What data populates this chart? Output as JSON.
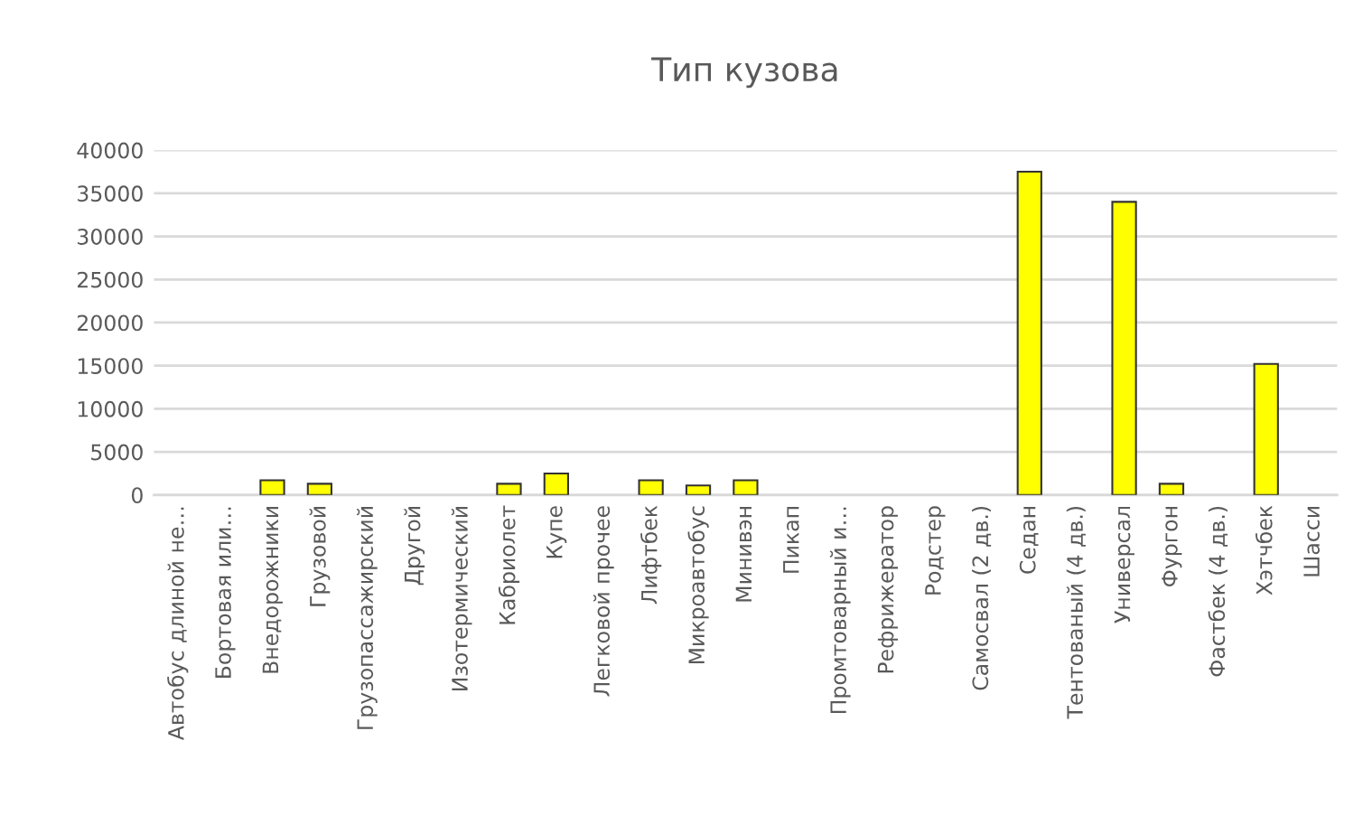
{
  "chart_data": {
    "type": "bar",
    "title": "Тип кузова",
    "categories": [
      "Автобус длиной не…",
      "Бортовая или…",
      "Внедорожники",
      "Грузовой",
      "Грузопассажирский",
      "Другой",
      "Изотермический",
      "Кабриолет",
      "Купе",
      "Легковой прочее",
      "Лифтбек",
      "Микроавтобус",
      "Минивэн",
      "Пикап",
      "Промтоварный и…",
      "Рефрижератор",
      "Родстер",
      "Самосвал (2 дв.)",
      "Седан",
      "Тентованый (4 дв.)",
      "Универсал",
      "Фургон",
      "Фастбек (4 дв.)",
      "Хэтчбек",
      "Шасси"
    ],
    "values": [
      null,
      null,
      1700,
      1300,
      null,
      null,
      null,
      1300,
      2500,
      null,
      1700,
      1100,
      1700,
      null,
      null,
      null,
      null,
      null,
      37500,
      null,
      34000,
      1300,
      null,
      15200,
      null
    ],
    "color": "#ffff00",
    "ylim": [
      0,
      40000
    ],
    "yticks": [
      0,
      5000,
      10000,
      15000,
      20000,
      25000,
      30000,
      35000,
      40000
    ],
    "grid": "y",
    "legend": false
  }
}
